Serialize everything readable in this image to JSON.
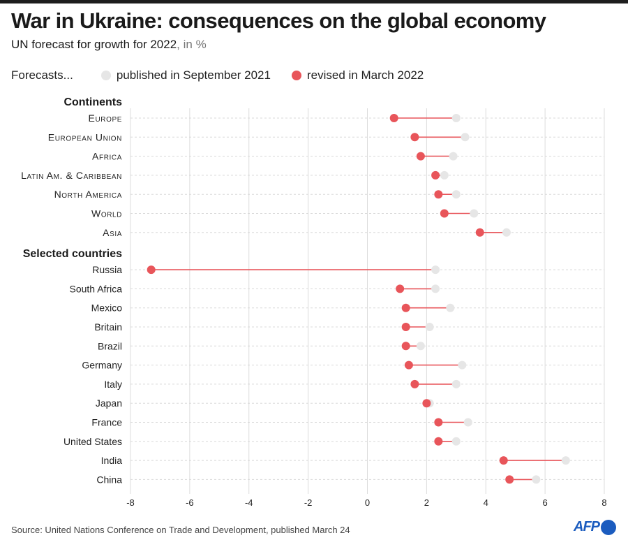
{
  "header": {
    "title": "War in Ukraine: consequences on the global economy",
    "subtitle": "UN forecast for growth for 2022",
    "subtitle_unit": ", in %"
  },
  "legend": {
    "lead": "Forecasts...",
    "items": [
      {
        "label": "published in September 2021",
        "color": "#e6e6e6"
      },
      {
        "label": "revised in March 2022",
        "color": "#e8555a"
      }
    ]
  },
  "footer": {
    "source": "Source: United Nations Conference on Trade and Development, published March 24",
    "logo": "AFP"
  },
  "chart_data": {
    "type": "dumbbell",
    "title": "War in Ukraine: consequences on the global economy",
    "subtitle": "UN forecast for growth for 2022, in %",
    "xlabel": "",
    "ylabel": "",
    "xlim": [
      -8,
      8
    ],
    "xticks": [
      -8,
      -6,
      -4,
      -2,
      0,
      2,
      4,
      6,
      8
    ],
    "grid": true,
    "legend_position": "top-left",
    "series": [
      {
        "name": "published in September 2021",
        "key": "sep2021",
        "color": "#e6e6e6"
      },
      {
        "name": "revised in March 2022",
        "key": "mar2022",
        "color": "#e8555a"
      }
    ],
    "groups": [
      {
        "name": "Continents",
        "smallcaps": true,
        "rows": [
          {
            "label": "Europe",
            "sep2021": 3.0,
            "mar2022": 0.9
          },
          {
            "label": "European Union",
            "sep2021": 3.3,
            "mar2022": 1.6
          },
          {
            "label": "Africa",
            "sep2021": 2.9,
            "mar2022": 1.8
          },
          {
            "label": "Latin Am. & Caribbean",
            "sep2021": 2.6,
            "mar2022": 2.3
          },
          {
            "label": "North America",
            "sep2021": 3.0,
            "mar2022": 2.4
          },
          {
            "label": "World",
            "sep2021": 3.6,
            "mar2022": 2.6
          },
          {
            "label": "Asia",
            "sep2021": 4.7,
            "mar2022": 3.8
          }
        ]
      },
      {
        "name": "Selected countries",
        "smallcaps": false,
        "rows": [
          {
            "label": "Russia",
            "sep2021": 2.3,
            "mar2022": -7.3
          },
          {
            "label": "South Africa",
            "sep2021": 2.3,
            "mar2022": 1.1
          },
          {
            "label": "Mexico",
            "sep2021": 2.8,
            "mar2022": 1.3
          },
          {
            "label": "Britain",
            "sep2021": 2.1,
            "mar2022": 1.3
          },
          {
            "label": "Brazil",
            "sep2021": 1.8,
            "mar2022": 1.3
          },
          {
            "label": "Germany",
            "sep2021": 3.2,
            "mar2022": 1.4
          },
          {
            "label": "Italy",
            "sep2021": 3.0,
            "mar2022": 1.6
          },
          {
            "label": "Japan",
            "sep2021": 2.1,
            "mar2022": 2.0
          },
          {
            "label": "France",
            "sep2021": 3.4,
            "mar2022": 2.4
          },
          {
            "label": "United States",
            "sep2021": 3.0,
            "mar2022": 2.4
          },
          {
            "label": "India",
            "sep2021": 6.7,
            "mar2022": 4.6
          },
          {
            "label": "China",
            "sep2021": 5.7,
            "mar2022": 4.8
          }
        ]
      }
    ]
  }
}
